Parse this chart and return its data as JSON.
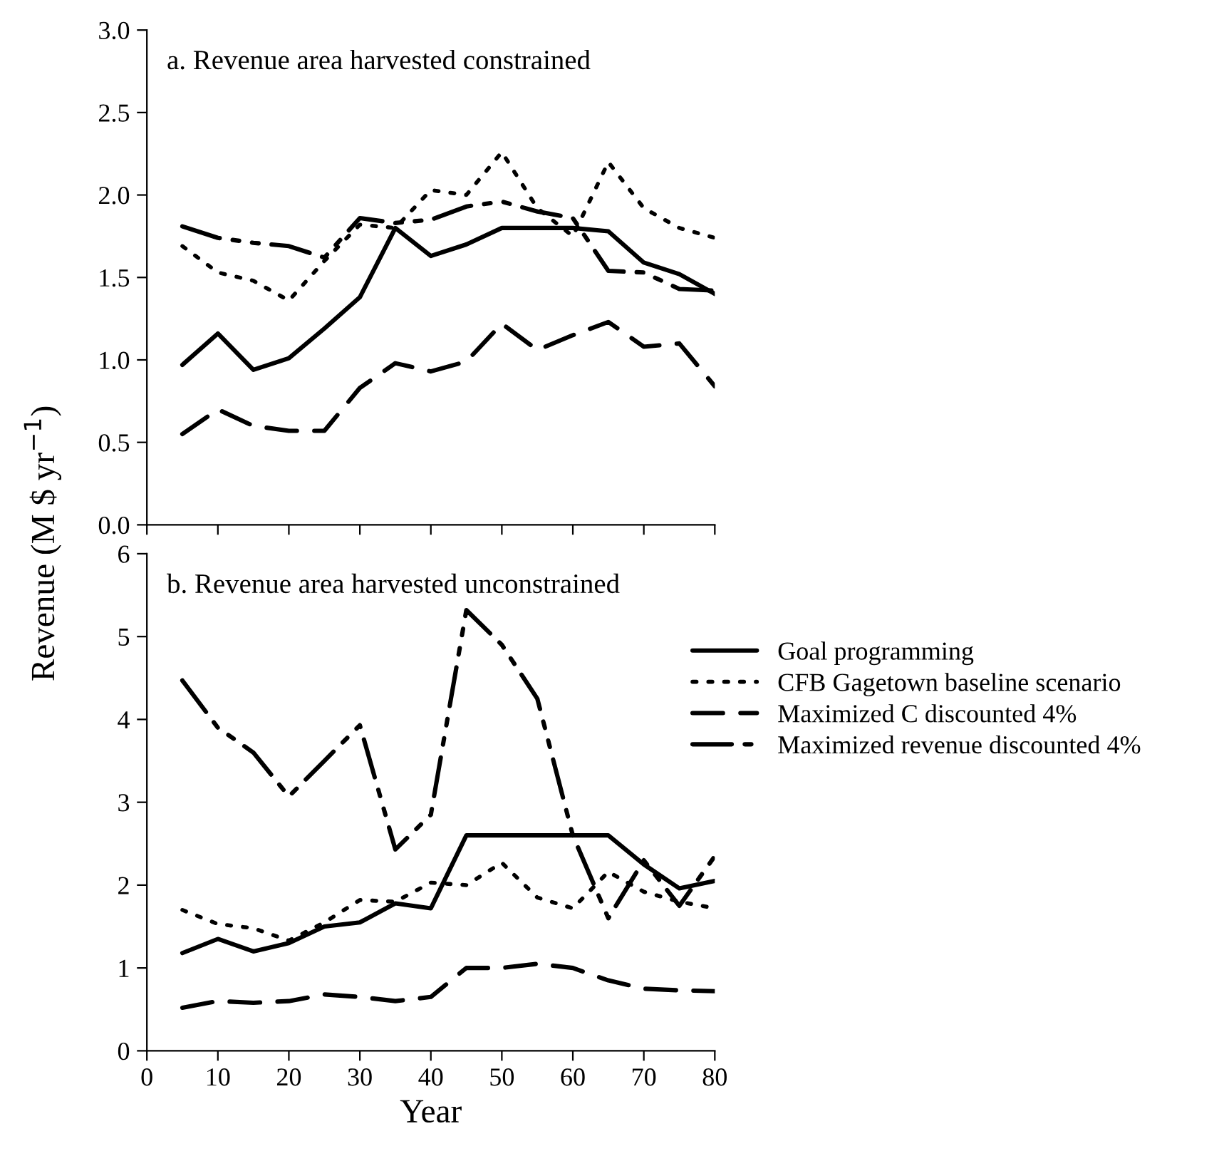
{
  "chart_data": [
    {
      "type": "line",
      "title": "a. Revenue area harvested constrained",
      "ylabel": "Revenue (M $ yr$^{−1}$)",
      "x": [
        5,
        10,
        15,
        20,
        25,
        30,
        35,
        40,
        45,
        50,
        55,
        60,
        65,
        70,
        75,
        80
      ],
      "series": [
        {
          "color": "#000000",
          "line_style": "solid",
          "values": [
            0.97,
            1.16,
            0.94,
            1.01,
            1.19,
            1.38,
            1.8,
            1.63,
            1.7,
            1.8,
            1.8,
            1.8,
            1.78,
            1.59,
            1.52,
            1.4
          ]
        },
        {
          "color": "#000000",
          "line_style": "dotted",
          "values": [
            1.69,
            1.53,
            1.48,
            1.36,
            1.6,
            1.82,
            1.8,
            2.03,
            2.0,
            2.26,
            1.92,
            1.75,
            2.2,
            1.92,
            1.8,
            1.74
          ]
        },
        {
          "color": "#000000",
          "line_style": "dashed",
          "values": [
            0.55,
            0.7,
            0.6,
            0.57,
            0.57,
            0.83,
            0.98,
            0.93,
            0.99,
            1.22,
            1.06,
            1.15,
            1.23,
            1.08,
            1.1,
            0.84
          ]
        },
        {
          "color": "#000000",
          "line_style": "dashdotdot",
          "values": [
            1.81,
            1.74,
            1.71,
            1.69,
            1.62,
            1.86,
            1.83,
            1.85,
            1.93,
            1.96,
            1.9,
            1.86,
            1.54,
            1.53,
            1.43,
            1.42
          ]
        }
      ],
      "xlim": [
        0,
        80
      ],
      "xticks": [
        0,
        10,
        20,
        30,
        40,
        50,
        60,
        70,
        80
      ],
      "ylim": [
        0,
        3.0
      ],
      "yticks": [
        {
          "value": 0,
          "label": "0.0"
        },
        {
          "value": 0.5,
          "label": "0.5"
        },
        {
          "value": 1,
          "label": "1.0"
        },
        {
          "value": 1.5,
          "label": "1.5"
        },
        {
          "value": 2,
          "label": "2.0"
        },
        {
          "value": 2.5,
          "label": "2.5"
        },
        {
          "value": 3,
          "label": "3.0"
        }
      ],
      "tick_labels": "y",
      "grid": false,
      "legend": false
    },
    {
      "type": "line",
      "title": "b. Revenue area harvested unconstrained",
      "xlabel": "Year",
      "x": [
        5,
        10,
        15,
        20,
        25,
        30,
        35,
        40,
        45,
        50,
        55,
        60,
        65,
        70,
        75,
        80
      ],
      "series": [
        {
          "name": "Goal programming",
          "color": "#000000",
          "line_style": "solid",
          "values": [
            1.18,
            1.35,
            1.2,
            1.3,
            1.5,
            1.55,
            1.78,
            1.72,
            2.6,
            2.6,
            2.6,
            2.6,
            2.6,
            2.25,
            1.96,
            2.05
          ]
        },
        {
          "name": "CFB Gagetown baseline scenario",
          "color": "#000000",
          "line_style": "dotted",
          "values": [
            1.7,
            1.53,
            1.48,
            1.33,
            1.55,
            1.82,
            1.8,
            2.03,
            2.0,
            2.27,
            1.85,
            1.72,
            2.16,
            1.92,
            1.8,
            1.72
          ]
        },
        {
          "name": "Maximized C discounted 4%",
          "color": "#000000",
          "line_style": "dashed",
          "values": [
            0.52,
            0.6,
            0.58,
            0.6,
            0.68,
            0.65,
            0.6,
            0.65,
            1.0,
            1.0,
            1.05,
            1.0,
            0.85,
            0.75,
            0.73,
            0.72
          ]
        },
        {
          "name": "Maximized revenue discounted 4%",
          "color": "#000000",
          "line_style": "dashdotdot",
          "values": [
            4.47,
            3.9,
            3.6,
            3.07,
            3.5,
            3.93,
            2.43,
            2.85,
            5.32,
            4.9,
            4.25,
            2.6,
            1.6,
            2.3,
            1.75,
            2.35
          ]
        }
      ],
      "xlim": [
        0,
        80
      ],
      "xticks": [
        0,
        10,
        20,
        30,
        40,
        50,
        60,
        70,
        80
      ],
      "ylim": [
        0,
        6
      ],
      "yticks": [
        0,
        1,
        2,
        3,
        4,
        5,
        6
      ],
      "grid": false,
      "legend": "right"
    }
  ]
}
